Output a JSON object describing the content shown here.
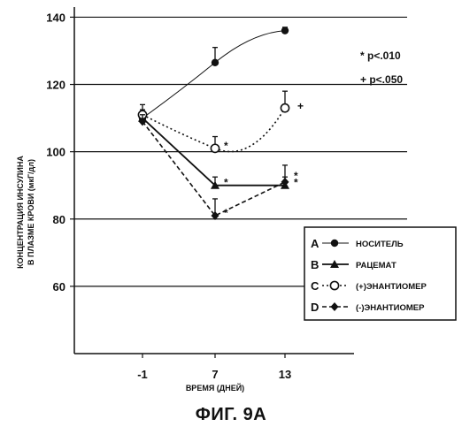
{
  "chart_data": {
    "type": "line",
    "xlabel": "ВРЕМЯ (ДНЕЙ)",
    "ylabel_lines": [
      "КОНЦЕНТРАЦИЯ ИНСУЛИНА",
      "В ПЛАЗМЕ КРОВИ (мкГ/дл)"
    ],
    "x_categories": [
      "-1",
      "7",
      "13"
    ],
    "yticks": [
      60,
      80,
      100,
      120,
      140
    ],
    "ylim": [
      40,
      143
    ],
    "grid": "horizontal",
    "legend_position": "right",
    "series": [
      {
        "key": "A",
        "name": "НОСИТЕЛЬ",
        "marker": "filled-circle",
        "line": "solid-thin",
        "values": [
          110,
          126.5,
          136
        ],
        "err": [
          2,
          4.5,
          1
        ]
      },
      {
        "key": "B",
        "name": "РАЦЕМАТ",
        "marker": "filled-triangle",
        "line": "solid-thick",
        "values": [
          110,
          90,
          90
        ],
        "err": [
          2.5,
          2.5,
          2.5
        ]
      },
      {
        "key": "C",
        "name": "(+)ЭНАНТИОМЕР",
        "marker": "open-circle",
        "line": "dotted",
        "values": [
          111,
          101,
          113
        ],
        "err": [
          3,
          3.5,
          5
        ]
      },
      {
        "key": "D",
        "name": "(-)ЭНАНТИОМЕР",
        "marker": "filled-diamond",
        "line": "dashed",
        "values": [
          109,
          81,
          91
        ],
        "err": [
          2,
          5,
          5
        ]
      }
    ],
    "annotations": [
      {
        "text": "* p<.010"
      },
      {
        "text": "+ p<.050"
      }
    ],
    "markers_on_points": [
      {
        "symbol": "*",
        "x": "7",
        "y": 101
      },
      {
        "symbol": "*",
        "x": "7",
        "y": 90
      },
      {
        "symbol": "*",
        "x": "7",
        "y": 81
      },
      {
        "symbol": "*",
        "x": "13",
        "y": 92
      },
      {
        "symbol": "*",
        "x": "13",
        "y": 90
      },
      {
        "symbol": "+",
        "x": "13",
        "y": 113
      }
    ]
  },
  "caption": "ФИГ. 9А"
}
